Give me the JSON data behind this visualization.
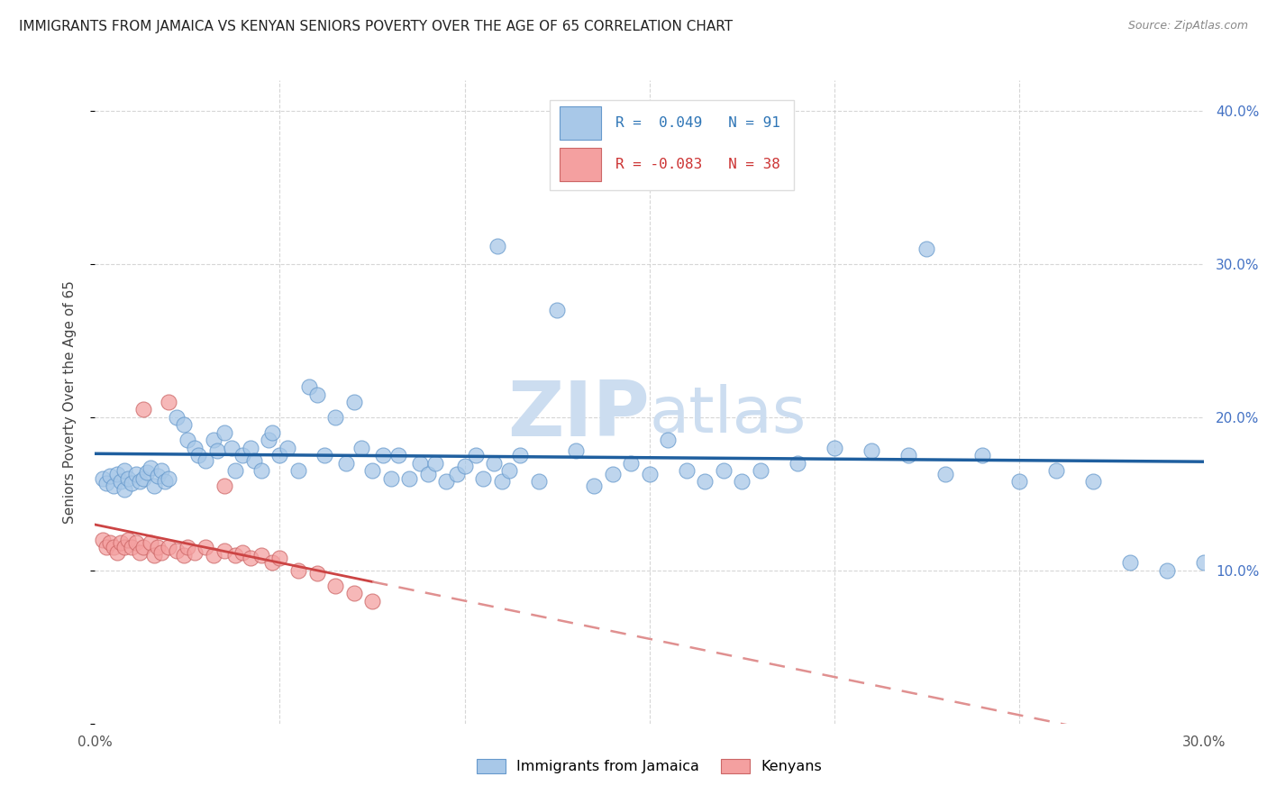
{
  "title": "IMMIGRANTS FROM JAMAICA VS KENYAN SENIORS POVERTY OVER THE AGE OF 65 CORRELATION CHART",
  "source": "Source: ZipAtlas.com",
  "ylabel": "Seniors Poverty Over the Age of 65",
  "xlim": [
    0.0,
    0.3
  ],
  "ylim": [
    0.0,
    0.42
  ],
  "legend1_R": "0.049",
  "legend1_N": "91",
  "legend2_R": "-0.083",
  "legend2_N": "38",
  "blue_scatter_color": "#a8c8e8",
  "blue_edge_color": "#6699cc",
  "pink_scatter_color": "#f4a0a0",
  "pink_edge_color": "#cc6666",
  "line_blue_color": "#1f5f9f",
  "line_pink_solid_color": "#cc4444",
  "line_pink_dash_color": "#e09090",
  "grid_color": "#cccccc",
  "right_tick_color": "#4472c4",
  "title_color": "#222222",
  "source_color": "#888888",
  "ylabel_color": "#444444",
  "legend_text_blue": "#2e75b6",
  "legend_text_pink": "#cc3333",
  "legend_bg": "#ffffff",
  "legend_border": "#dddddd",
  "watermark_color": "#ccddf0",
  "bottom_legend_blue": "#a8c8e8",
  "bottom_legend_pink": "#f4a0a0"
}
